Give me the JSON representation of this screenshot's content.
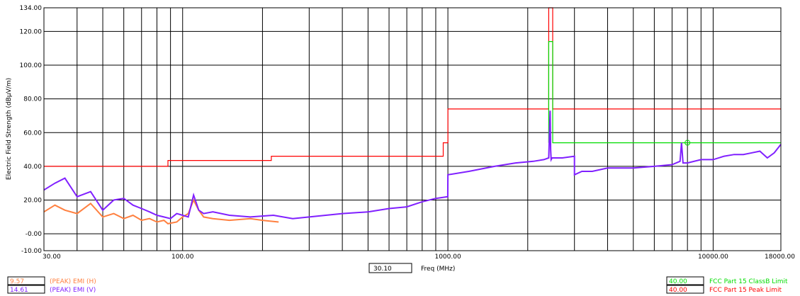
{
  "chart_data": {
    "type": "line",
    "xlabel": "Freq (MHz)",
    "ylabel": "Electric Field Strength (dBµV/m)",
    "xscale": "log",
    "xlim": [
      30,
      18000
    ],
    "ylim": [
      -10,
      134
    ],
    "grid": true,
    "x_ticks": [
      30,
      100,
      1000,
      10000,
      18000
    ],
    "x_tick_labels": [
      "30.00",
      "100.00",
      "1000.00",
      "10000.00",
      "18000.00"
    ],
    "y_ticks": [
      -10,
      0,
      20,
      40,
      60,
      80,
      100,
      120,
      134
    ],
    "y_tick_labels": [
      "-10.00",
      "-0.00",
      "20.00",
      "40.00",
      "60.00",
      "80.00",
      "100.00",
      "120.00",
      "134.00"
    ],
    "cursor_value": "30.10",
    "series": [
      {
        "name": "FCC Part 15 Peak Limit",
        "color": "#ff0000",
        "x": [
          30,
          88,
          88,
          216,
          216,
          960,
          960,
          1000,
          1000,
          2400,
          2400,
          2483.5,
          2483.5,
          18000
        ],
        "y": [
          40,
          40,
          43.5,
          43.5,
          46,
          46,
          54,
          54,
          74,
          74,
          134,
          134,
          74,
          74
        ]
      },
      {
        "name": "FCC Part 15 ClassB Limit",
        "color": "#00dd00",
        "x": [
          2400,
          2400,
          2483.5,
          2483.5,
          18000
        ],
        "y": [
          54,
          114,
          114,
          54,
          54
        ]
      },
      {
        "name": "(PEAK) EMI (H)",
        "color": "#ff8040",
        "x": [
          30,
          33,
          36,
          40,
          45,
          50,
          55,
          60,
          65,
          70,
          75,
          80,
          85,
          88,
          95,
          100,
          105,
          110,
          115,
          120,
          130,
          150,
          180,
          200,
          230
        ],
        "y": [
          13,
          17,
          14,
          12,
          18,
          10,
          12,
          9,
          11,
          8,
          9,
          7,
          8,
          6,
          7,
          10,
          12,
          20,
          14,
          10,
          9,
          8,
          9,
          8,
          7
        ]
      },
      {
        "name": "(PEAK) EMI (V)",
        "color": "#8020ff",
        "x": [
          30,
          33,
          36,
          40,
          45,
          50,
          55,
          60,
          65,
          70,
          75,
          80,
          85,
          90,
          95,
          100,
          105,
          110,
          115,
          120,
          130,
          150,
          180,
          220,
          260,
          300,
          400,
          500,
          600,
          700,
          800,
          900,
          999,
          1000,
          1200,
          1500,
          1800,
          2100,
          2300,
          2400,
          2430,
          2440,
          2450,
          2470,
          2500,
          2700,
          3000,
          3000,
          3200,
          3500,
          4000,
          4500,
          5000,
          6000,
          7000,
          7500,
          7600,
          7700,
          8000,
          9000,
          10000,
          11000,
          12000,
          13000,
          14000,
          15000,
          16000,
          17000,
          18000
        ],
        "y": [
          26,
          30,
          33,
          22,
          25,
          14,
          20,
          21,
          17,
          15,
          13,
          11,
          10,
          9,
          12,
          11,
          10,
          23,
          14,
          12,
          13,
          11,
          10,
          11,
          9,
          10,
          12,
          13,
          15,
          16,
          19,
          21,
          22,
          35,
          37,
          40,
          42,
          43,
          44,
          45,
          73,
          50,
          44,
          45,
          45,
          45,
          46,
          35,
          37,
          37,
          39,
          39,
          39,
          40,
          41,
          43,
          54,
          42,
          42,
          44,
          44,
          46,
          47,
          47,
          48,
          49,
          45,
          48,
          53
        ]
      }
    ],
    "marker": {
      "x": 8000,
      "y": 54,
      "color": "#00dd00"
    },
    "legend_left": [
      {
        "value": "9.57",
        "label": "(PEAK) EMI (H)",
        "color": "#ff8040"
      },
      {
        "value": "14.61",
        "label": "(PEAK) EMI (V)",
        "color": "#8020ff"
      }
    ],
    "legend_right": [
      {
        "value": "40.00",
        "label": "FCC Part 15 ClassB Limit",
        "color": "#00dd00"
      },
      {
        "value": "40.00",
        "label": "FCC Part 15 Peak Limit",
        "color": "#ff0000"
      }
    ]
  }
}
